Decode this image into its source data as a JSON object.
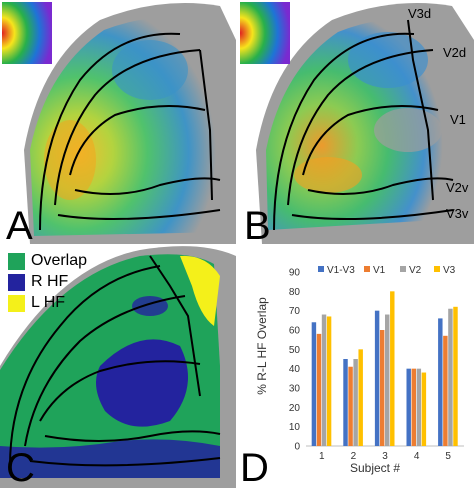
{
  "panels": {
    "a": {
      "letter": "A"
    },
    "b": {
      "letter": "B",
      "region_labels": [
        "V3d",
        "V2d",
        "V1",
        "V2v",
        "V3v"
      ]
    },
    "c": {
      "letter": "C",
      "legend": [
        {
          "label": "Overlap",
          "color": "#1fa35a"
        },
        {
          "label": "R HF",
          "color": "#23239e"
        },
        {
          "label": "L HF",
          "color": "#f4f01a"
        }
      ]
    },
    "d": {
      "letter": "D"
    }
  },
  "colors": {
    "surface": "#9e9e9e",
    "boundary": "#000000",
    "overlap_green": "#1fa35a",
    "blue": "#2a6fc4",
    "dark_blue": "#23239e",
    "yellow": "#f4f01a",
    "orange": "#f08a1c"
  },
  "chart_data": {
    "type": "bar",
    "categories": [
      "1",
      "2",
      "3",
      "4",
      "5"
    ],
    "series": [
      {
        "name": "V1-V3",
        "color": "#4472c4",
        "values": [
          64,
          45,
          70,
          40,
          66
        ]
      },
      {
        "name": "V1",
        "color": "#ed7d31",
        "values": [
          58,
          41,
          60,
          40,
          57
        ]
      },
      {
        "name": "V2",
        "color": "#a5a5a5",
        "values": [
          68,
          45,
          68,
          40,
          71
        ]
      },
      {
        "name": "V3",
        "color": "#ffc000",
        "values": [
          67,
          50,
          80,
          38,
          72
        ]
      }
    ],
    "xlabel": "Subject #",
    "ylabel": "% R-L HF Overlap",
    "ylim": [
      0,
      90
    ],
    "yticks": [
      "0",
      "10",
      "20",
      "30",
      "40",
      "50",
      "60",
      "70",
      "80",
      "90"
    ],
    "grid": false,
    "legend_position": "top"
  }
}
